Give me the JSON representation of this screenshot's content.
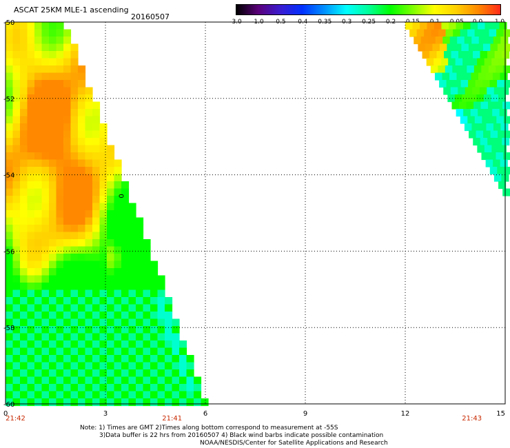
{
  "title": "ASCAT 25KM MLE-1 ascending",
  "date": "20160507",
  "colorbar": {
    "labels": [
      "-3.0",
      "-1.0",
      "-0.5",
      "-0.4",
      "-0.35",
      "-0.3",
      "-0.25",
      "-0.2",
      "-0.15",
      "-0.1",
      "-0.05",
      "0.0",
      "1.0"
    ],
    "stops": [
      "#000000",
      "#5a007a",
      "#3a1cd0",
      "#0030ff",
      "#0090ff",
      "#00ffff",
      "#00ff9a",
      "#00ff00",
      "#7cff00",
      "#ffff00",
      "#ffd000",
      "#ff8800",
      "#ff2a1a"
    ]
  },
  "axes": {
    "x_ticks": [
      "0",
      "3",
      "6",
      "9",
      "12",
      "15"
    ],
    "y_ticks": [
      "-50",
      "-52",
      "-54",
      "-56",
      "-58",
      "-60"
    ],
    "x_range": [
      0,
      15
    ],
    "y_range": [
      -50,
      -60
    ]
  },
  "times": [
    {
      "label": "21:42",
      "x": 0.3
    },
    {
      "label": "21:41",
      "x": 5.0
    },
    {
      "label": "21:43",
      "x": 14.0
    }
  ],
  "time_color": "#c82800",
  "annotation": {
    "label": "0",
    "x": 3.4,
    "y": -54.5
  },
  "notes": [
    "Note: 1) Times are GMT 2)Times along bottom correspond to measurement at -55S",
    "3)Data buffer is 22 hrs from 20160507 4) Black wind barbs indicate possible contamination",
    "NOAA/NESDIS/Center for Satellite Applications and Research"
  ]
}
